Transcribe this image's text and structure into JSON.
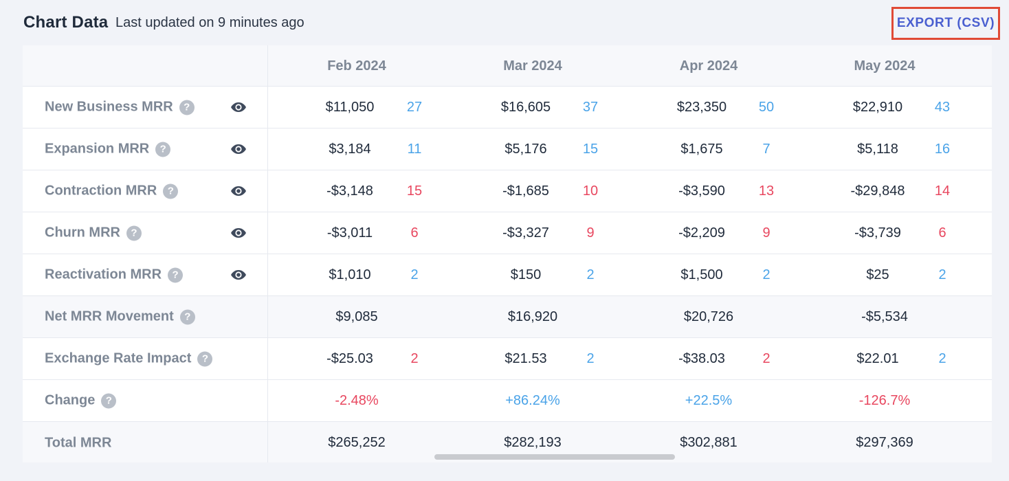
{
  "header": {
    "title": "Chart Data",
    "subtitle": "Last updated on 9 minutes ago",
    "export_label": "EXPORT (CSV)"
  },
  "columns": [
    "Feb 2024",
    "Mar 2024",
    "Apr 2024",
    "May 2024"
  ],
  "rows": [
    {
      "label": "New Business MRR",
      "help": true,
      "eye": true,
      "shaded": false,
      "cells": [
        {
          "value": "$11,050",
          "count": "27",
          "tone": "pos"
        },
        {
          "value": "$16,605",
          "count": "37",
          "tone": "pos"
        },
        {
          "value": "$23,350",
          "count": "50",
          "tone": "pos"
        },
        {
          "value": "$22,910",
          "count": "43",
          "tone": "pos"
        }
      ]
    },
    {
      "label": "Expansion MRR",
      "help": true,
      "eye": true,
      "shaded": false,
      "cells": [
        {
          "value": "$3,184",
          "count": "11",
          "tone": "pos"
        },
        {
          "value": "$5,176",
          "count": "15",
          "tone": "pos"
        },
        {
          "value": "$1,675",
          "count": "7",
          "tone": "pos"
        },
        {
          "value": "$5,118",
          "count": "16",
          "tone": "pos"
        }
      ]
    },
    {
      "label": "Contraction MRR",
      "help": true,
      "eye": true,
      "shaded": false,
      "cells": [
        {
          "value": "-$3,148",
          "count": "15",
          "tone": "neg"
        },
        {
          "value": "-$1,685",
          "count": "10",
          "tone": "neg"
        },
        {
          "value": "-$3,590",
          "count": "13",
          "tone": "neg"
        },
        {
          "value": "-$29,848",
          "count": "14",
          "tone": "neg"
        }
      ]
    },
    {
      "label": "Churn MRR",
      "help": true,
      "eye": true,
      "shaded": false,
      "cells": [
        {
          "value": "-$3,011",
          "count": "6",
          "tone": "neg"
        },
        {
          "value": "-$3,327",
          "count": "9",
          "tone": "neg"
        },
        {
          "value": "-$2,209",
          "count": "9",
          "tone": "neg"
        },
        {
          "value": "-$3,739",
          "count": "6",
          "tone": "neg"
        }
      ]
    },
    {
      "label": "Reactivation MRR",
      "help": true,
      "eye": true,
      "shaded": false,
      "cells": [
        {
          "value": "$1,010",
          "count": "2",
          "tone": "pos"
        },
        {
          "value": "$150",
          "count": "2",
          "tone": "pos"
        },
        {
          "value": "$1,500",
          "count": "2",
          "tone": "pos"
        },
        {
          "value": "$25",
          "count": "2",
          "tone": "pos"
        }
      ]
    },
    {
      "label": "Net MRR Movement",
      "help": true,
      "eye": false,
      "shaded": true,
      "cells": [
        {
          "value": "$9,085"
        },
        {
          "value": "$16,920"
        },
        {
          "value": "$20,726"
        },
        {
          "value": "-$5,534"
        }
      ]
    },
    {
      "label": "Exchange Rate Impact",
      "help": true,
      "eye": false,
      "shaded": false,
      "cells": [
        {
          "value": "-$25.03",
          "count": "2",
          "tone": "neg"
        },
        {
          "value": "$21.53",
          "count": "2",
          "tone": "pos"
        },
        {
          "value": "-$38.03",
          "count": "2",
          "tone": "neg"
        },
        {
          "value": "$22.01",
          "count": "2",
          "tone": "pos"
        }
      ]
    },
    {
      "label": "Change",
      "help": true,
      "eye": false,
      "shaded": false,
      "cells": [
        {
          "value": "-2.48%",
          "tone": "neg"
        },
        {
          "value": "+86.24%",
          "tone": "pos"
        },
        {
          "value": "+22.5%",
          "tone": "pos"
        },
        {
          "value": "-126.7%",
          "tone": "neg"
        }
      ]
    },
    {
      "label": "Total MRR",
      "help": false,
      "eye": false,
      "shaded": true,
      "cells": [
        {
          "value": "$265,252"
        },
        {
          "value": "$282,193"
        },
        {
          "value": "$302,881"
        },
        {
          "value": "$297,369"
        }
      ]
    }
  ],
  "icons": {
    "help": "question-circle-icon",
    "eye": "eye-icon"
  },
  "colors": {
    "accent": "#4a5fd0",
    "positive": "#4aa3e8",
    "negative": "#e8475f",
    "label": "#7d8795"
  }
}
